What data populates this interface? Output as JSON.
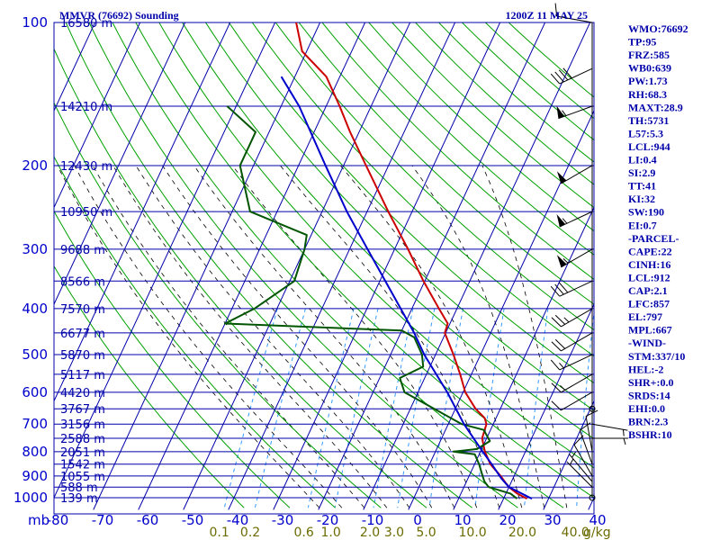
{
  "header": {
    "station": "MMVR (76692) Sounding",
    "time": "1200Z 11 MAY 25"
  },
  "colors": {
    "isobar": "#0000aa",
    "isotherm": "#0000aa",
    "dry_adiabat": "#00a000",
    "moist_adiabat": "#000000",
    "mixing_ratio": "#3399ff",
    "temperature": "#cc0000",
    "dewpoint": "#005500",
    "parcel": "#0000cc",
    "wind": "#000000"
  },
  "indices": [
    "WMO:76692",
    "TP:95",
    "FRZ:585",
    "WB0:639",
    "PW:1.73",
    "RH:68.3",
    "MAXT:28.9",
    "TH:5731",
    "L57:5.3",
    "LCL:944",
    "LI:0.4",
    "SI:2.9",
    "TT:41",
    "KI:32",
    "SW:190",
    "EI:0.7",
    "-PARCEL-",
    "CAPE:22",
    "CINH:16",
    "LCL:912",
    "CAP:2.1",
    "LFC:857",
    "EL:797",
    "MPL:667",
    "-WIND-",
    "STM:337/10",
    "HEL:-2",
    "SHR+:0.0",
    "SRDS:14",
    "EHI:0.0",
    "BRN:2.3",
    "BSHR:10"
  ],
  "chart_data": {
    "type": "line",
    "diagram": "skew-T log-P",
    "xlabel": "",
    "ylabel": "mb",
    "xlim": [
      -80,
      40
    ],
    "ylim": [
      1000,
      100
    ],
    "y_scale": "log",
    "pressure_ticks": [
      100,
      200,
      300,
      400,
      500,
      600,
      700,
      800,
      900,
      1000
    ],
    "temperature_ticks": [
      -80,
      -70,
      -60,
      -50,
      -40,
      -30,
      -20,
      -10,
      0,
      10,
      20,
      30,
      40
    ],
    "mixing_ratio_ticks": [
      "0.1",
      "0.2",
      "0.6",
      "1.0",
      "2.0",
      "3.0",
      "5.0",
      "10.0",
      "20.0",
      "40.0"
    ],
    "mixing_ratio_unit": "g/kg",
    "height_labels": [
      {
        "p": 100,
        "text": "16580 m"
      },
      {
        "p": 150,
        "text": "14210 m"
      },
      {
        "p": 200,
        "text": "12430 m"
      },
      {
        "p": 250,
        "text": "10950 m"
      },
      {
        "p": 300,
        "text": "9688 m"
      },
      {
        "p": 350,
        "text": "8566 m"
      },
      {
        "p": 400,
        "text": "7570 m"
      },
      {
        "p": 450,
        "text": "6677 m"
      },
      {
        "p": 500,
        "text": "5870 m"
      },
      {
        "p": 550,
        "text": "5117 m"
      },
      {
        "p": 600,
        "text": "4420 m"
      },
      {
        "p": 650,
        "text": "3767 m"
      },
      {
        "p": 700,
        "text": "3156 m"
      },
      {
        "p": 750,
        "text": "2588 m"
      },
      {
        "p": 800,
        "text": "2051 m"
      },
      {
        "p": 850,
        "text": "1542 m"
      },
      {
        "p": 900,
        "text": "1055 m"
      },
      {
        "p": 950,
        "text": "588 m"
      },
      {
        "p": 1000,
        "text": "139 m"
      }
    ],
    "series": [
      {
        "key": "temperature",
        "points": [
          [
            1005,
            25.2
          ],
          [
            980,
            22.5
          ],
          [
            950,
            20.0
          ],
          [
            925,
            18.5
          ],
          [
            900,
            17.0
          ],
          [
            850,
            13.5
          ],
          [
            800,
            11.0
          ],
          [
            750,
            9.0
          ],
          [
            700,
            8.5
          ],
          [
            680,
            7.5
          ],
          [
            650,
            4.5
          ],
          [
            600,
            0.5
          ],
          [
            550,
            -2.5
          ],
          [
            500,
            -6.0
          ],
          [
            450,
            -10.2
          ],
          [
            430,
            -10.5
          ],
          [
            400,
            -14.0
          ],
          [
            350,
            -20.3
          ],
          [
            300,
            -27.0
          ],
          [
            250,
            -35.3
          ],
          [
            200,
            -45.0
          ],
          [
            170,
            -52.0
          ],
          [
            150,
            -57.0
          ],
          [
            130,
            -63.0
          ],
          [
            115,
            -71.0
          ],
          [
            100,
            -75.3
          ]
        ]
      },
      {
        "key": "dewpoint",
        "points": [
          [
            1005,
            23.0
          ],
          [
            980,
            21.0
          ],
          [
            950,
            15.5
          ],
          [
            925,
            14.0
          ],
          [
            900,
            13.0
          ],
          [
            850,
            11.0
          ],
          [
            810,
            9.0
          ],
          [
            800,
            4.0
          ],
          [
            790,
            9.0
          ],
          [
            760,
            11.0
          ],
          [
            720,
            8.5
          ],
          [
            700,
            3.0
          ],
          [
            600,
            -13.0
          ],
          [
            560,
            -15.5
          ],
          [
            530,
            -11.5
          ],
          [
            500,
            -13.0
          ],
          [
            460,
            -16.5
          ],
          [
            445,
            -20.0
          ],
          [
            430,
            -60.0
          ],
          [
            400,
            -55.0
          ],
          [
            350,
            -49.0
          ],
          [
            300,
            -50.0
          ],
          [
            280,
            -51.0
          ],
          [
            250,
            -66.0
          ],
          [
            200,
            -73.0
          ],
          [
            170,
            -73.0
          ],
          [
            150,
            -82.0
          ]
        ]
      },
      {
        "key": "parcel",
        "points": [
          [
            1005,
            26.3
          ],
          [
            950,
            20.0
          ],
          [
            912,
            17.5
          ],
          [
            850,
            13.8
          ],
          [
            800,
            10.5
          ],
          [
            700,
            3.5
          ],
          [
            600,
            -3.5
          ],
          [
            500,
            -12.5
          ],
          [
            450,
            -17.0
          ],
          [
            400,
            -22.5
          ],
          [
            300,
            -36.0
          ],
          [
            250,
            -44.5
          ],
          [
            200,
            -54.0
          ],
          [
            150,
            -66.0
          ],
          [
            130,
            -73.0
          ]
        ]
      }
    ],
    "winds": [
      {
        "p": 1000,
        "dir": 270,
        "spd": 0
      },
      {
        "p": 950,
        "dir": 315,
        "spd": 5
      },
      {
        "p": 925,
        "dir": 320,
        "spd": 5
      },
      {
        "p": 900,
        "dir": 330,
        "spd": 10
      },
      {
        "p": 850,
        "dir": 340,
        "spd": 10
      },
      {
        "p": 800,
        "dir": 350,
        "spd": 10
      },
      {
        "p": 750,
        "dir": 90,
        "spd": 5
      },
      {
        "p": 700,
        "dir": 100,
        "spd": 5
      },
      {
        "p": 650,
        "dir": 90,
        "spd": 0
      },
      {
        "p": 600,
        "dir": 240,
        "spd": 10
      },
      {
        "p": 550,
        "dir": 240,
        "spd": 15
      },
      {
        "p": 500,
        "dir": 245,
        "spd": 15
      },
      {
        "p": 450,
        "dir": 240,
        "spd": 20
      },
      {
        "p": 400,
        "dir": 240,
        "spd": 25
      },
      {
        "p": 350,
        "dir": 245,
        "spd": 30
      },
      {
        "p": 300,
        "dir": 240,
        "spd": 55
      },
      {
        "p": 250,
        "dir": 245,
        "spd": 55
      },
      {
        "p": 200,
        "dir": 240,
        "spd": 50
      },
      {
        "p": 150,
        "dir": 250,
        "spd": 55
      },
      {
        "p": 125,
        "dir": 245,
        "spd": 40
      },
      {
        "p": 100,
        "dir": 280,
        "spd": 10
      }
    ]
  }
}
